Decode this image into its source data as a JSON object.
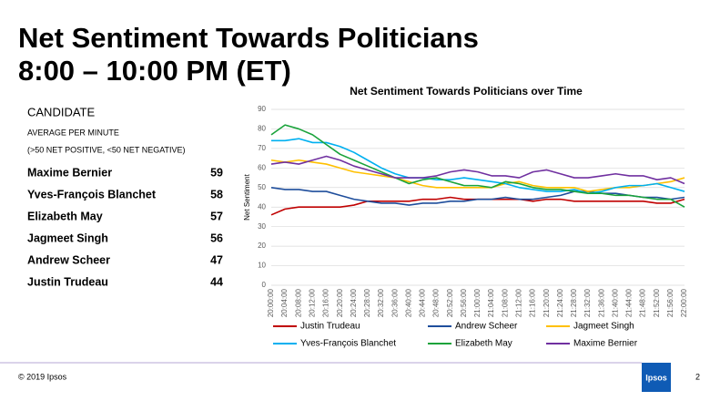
{
  "header": {
    "title": [
      "Net Sentiment Towards Politicians",
      "8:00 – 10:00 PM (ET)"
    ]
  },
  "table": {
    "heading": "CANDIDATE",
    "subheading": [
      "AVERAGE PER MINUTE",
      "(>50 NET POSITIVE, <50 NET NEGATIVE)"
    ],
    "rows": [
      [
        "Maxime Bernier",
        59
      ],
      [
        "Yves-François Blanchet",
        58
      ],
      [
        "Elizabeth May",
        57
      ],
      [
        "Jagmeet Singh",
        56
      ],
      [
        "Andrew Scheer",
        47
      ],
      [
        "Justin Trudeau",
        44
      ]
    ]
  },
  "chart_data": {
    "type": "line",
    "title": "Net Sentiment Towards Politicians over Time",
    "y_label": "Net Sentiment",
    "categories": [
      "20:00:00",
      "20:04:00",
      "20:08:00",
      "20:12:00",
      "20:16:00",
      "20:20:00",
      "20:24:00",
      "20:28:00",
      "20:32:00",
      "20:36:00",
      "20:40:00",
      "20:44:00",
      "20:48:00",
      "20:52:00",
      "20:56:00",
      "21:00:00",
      "21:04:00",
      "21:08:00",
      "21:12:00",
      "21:16:00",
      "21:20:00",
      "21:24:00",
      "21:28:00",
      "21:32:00",
      "21:36:00",
      "21:40:00",
      "21:44:00",
      "21:48:00",
      "21:52:00",
      "21:56:00",
      "22:00:00"
    ],
    "ylim": [
      0,
      90
    ],
    "yticks": [
      0,
      10,
      20,
      30,
      40,
      50,
      60,
      70,
      80,
      90
    ],
    "grid": true,
    "legend": "bottom",
    "series": [
      {
        "name": "Justin Trudeau",
        "color": "#c00000",
        "values": [
          36,
          39,
          40,
          40,
          40,
          40,
          41,
          43,
          43,
          43,
          43,
          44,
          44,
          45,
          44,
          44,
          44,
          44,
          44,
          43,
          44,
          44,
          43,
          43,
          43,
          43,
          43,
          43,
          42,
          42,
          44
        ]
      },
      {
        "name": "Andrew Scheer",
        "color": "#1f4e9c",
        "values": [
          50,
          49,
          49,
          48,
          48,
          46,
          44,
          43,
          42,
          42,
          41,
          42,
          42,
          43,
          43,
          44,
          44,
          45,
          44,
          44,
          45,
          46,
          48,
          48,
          47,
          47,
          46,
          45,
          45,
          44,
          45
        ]
      },
      {
        "name": "Jagmeet Singh",
        "color": "#ffc000",
        "values": [
          64,
          63,
          64,
          63,
          62,
          60,
          58,
          57,
          56,
          55,
          53,
          51,
          50,
          50,
          50,
          50,
          50,
          52,
          53,
          51,
          50,
          50,
          50,
          48,
          49,
          50,
          50,
          51,
          52,
          53,
          55
        ]
      },
      {
        "name": "Yves-François Blanchet",
        "color": "#00b0f0",
        "values": [
          74,
          74,
          75,
          73,
          73,
          71,
          68,
          64,
          60,
          57,
          55,
          55,
          54,
          54,
          55,
          54,
          53,
          52,
          50,
          49,
          48,
          48,
          49,
          47,
          48,
          50,
          51,
          51,
          52,
          50,
          48
        ]
      },
      {
        "name": "Elizabeth May",
        "color": "#1aa33b",
        "values": [
          77,
          82,
          80,
          77,
          72,
          67,
          64,
          61,
          58,
          55,
          52,
          54,
          55,
          53,
          51,
          51,
          50,
          53,
          52,
          50,
          49,
          49,
          48,
          47,
          47,
          46,
          46,
          45,
          44,
          44,
          40
        ]
      },
      {
        "name": "Maxime Bernier",
        "color": "#7030a0",
        "values": [
          62,
          63,
          62,
          64,
          66,
          64,
          61,
          59,
          57,
          55,
          55,
          55,
          56,
          58,
          59,
          58,
          56,
          56,
          55,
          58,
          59,
          57,
          55,
          55,
          56,
          57,
          56,
          56,
          54,
          55,
          52
        ]
      }
    ]
  },
  "footer": {
    "copyright": "© 2019 Ipsos",
    "logo": "Ipsos",
    "page": "2"
  }
}
